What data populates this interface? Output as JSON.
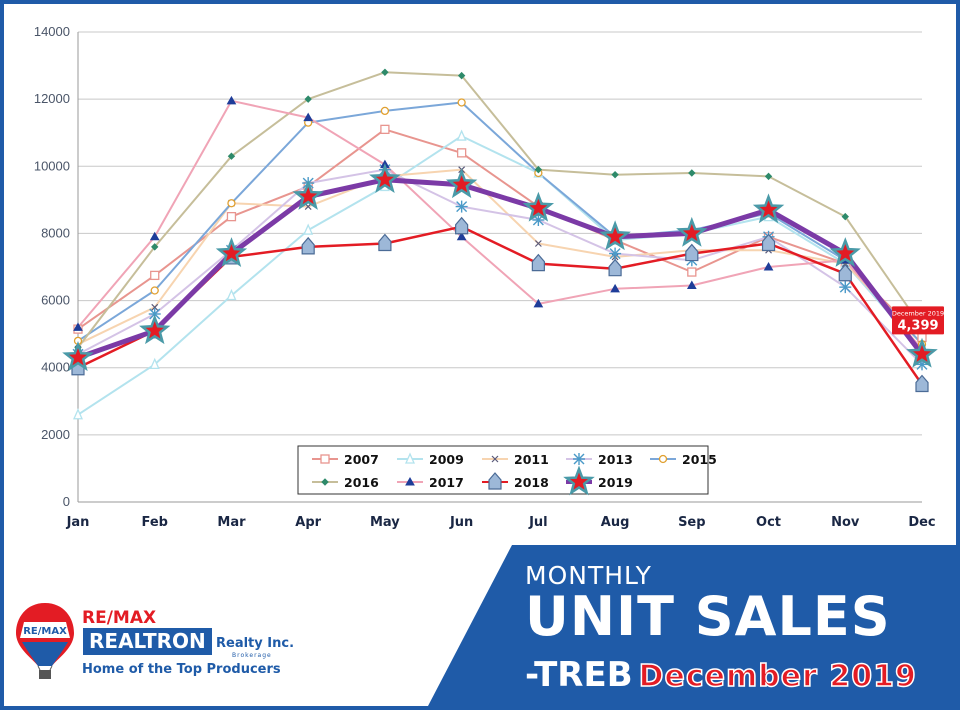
{
  "chart_data": {
    "type": "line",
    "categories": [
      "Jan",
      "Feb",
      "Mar",
      "Apr",
      "May",
      "Jun",
      "Jul",
      "Aug",
      "Sep",
      "Oct",
      "Nov",
      "Dec"
    ],
    "ylim": [
      0,
      14000
    ],
    "yticks": [
      0,
      2000,
      4000,
      6000,
      8000,
      10000,
      12000,
      14000
    ],
    "grid": true,
    "legend_position": "bottom-center",
    "series": [
      {
        "name": "2007",
        "color": "#e8958f",
        "marker": "square",
        "values": [
          5150,
          6750,
          8500,
          9400,
          11100,
          10400,
          8800,
          7800,
          6850,
          7900,
          7100,
          4900
        ]
      },
      {
        "name": "2009",
        "color": "#b3e3ee",
        "marker": "triangle",
        "values": [
          2600,
          4100,
          6150,
          8100,
          9400,
          10900,
          9800,
          7800,
          8000,
          8500,
          7100,
          4500
        ]
      },
      {
        "name": "2011",
        "color": "#f7d4b0",
        "marker": "x",
        "values": [
          4700,
          5800,
          8900,
          8800,
          9700,
          9900,
          7700,
          7300,
          7500,
          7500,
          7100,
          4700
        ]
      },
      {
        "name": "2013",
        "color": "#d4c3e6",
        "marker": "asterisk",
        "values": [
          4400,
          5600,
          7500,
          9500,
          9900,
          8800,
          8400,
          7400,
          7200,
          7900,
          6400,
          4100
        ]
      },
      {
        "name": "2015",
        "color": "#7ba7d9",
        "marker": "circle",
        "values": [
          4800,
          6300,
          8900,
          11300,
          11650,
          11900,
          9800,
          7900,
          8100,
          8600,
          7200,
          4700
        ]
      },
      {
        "name": "2016",
        "color": "#c6be9a",
        "marker": "diamond",
        "values": [
          4600,
          7600,
          10300,
          12000,
          12800,
          12700,
          9900,
          9750,
          9800,
          9700,
          8500,
          5200
        ]
      },
      {
        "name": "2017",
        "color": "#f0a4b6",
        "marker": "triangle-fill",
        "values": [
          5200,
          7900,
          11950,
          11450,
          10050,
          7900,
          5900,
          6350,
          6450,
          7000,
          7200,
          4550
        ]
      },
      {
        "name": "2018",
        "color": "#e31c24",
        "marker": "house",
        "values": [
          4000,
          5100,
          7300,
          7600,
          7700,
          8200,
          7100,
          6950,
          7400,
          7700,
          6800,
          3500
        ]
      },
      {
        "name": "2019",
        "color": "#7b3aa6",
        "marker": "star",
        "values": [
          4300,
          5100,
          7400,
          9100,
          9600,
          9450,
          8750,
          7900,
          8000,
          8700,
          7400,
          4399
        ]
      }
    ],
    "annotation": {
      "label": "December 2019",
      "value": "4,399"
    }
  },
  "banner": {
    "line1": "MONTHLY",
    "line2": "UNIT SALES",
    "line3": "-TREB",
    "date": "December 2019"
  },
  "logo": {
    "balloon_text": "RE/MAX",
    "brand": "RE/MAX",
    "name": "REALTRON",
    "realty": "Realty Inc.",
    "brokerage": "Brokerage",
    "tagline": "Home of the Top Producers"
  },
  "colors": {
    "frame": "#1f5ba8",
    "banner": "#1f5ba8",
    "accent_red": "#e31c24",
    "star_fill": "#e31c24",
    "star_outline": "#4a9aa8"
  }
}
